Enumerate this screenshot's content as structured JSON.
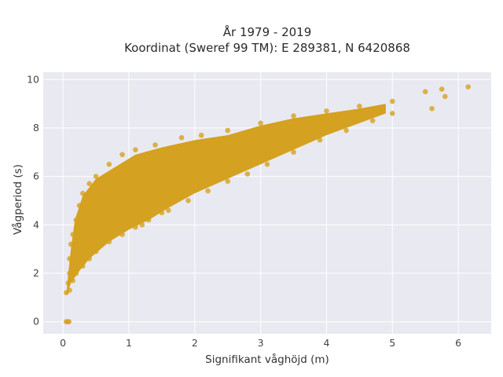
{
  "chart_data": {
    "type": "scatter",
    "title_line1": "År 1979 - 2019",
    "title_line2": "Koordinat (Sweref 99 TM): E 289381, N 6420868",
    "xlabel": "Signifikant våghöjd (m)",
    "ylabel": "Vågperiod (s)",
    "xlim": [
      -0.3,
      6.5
    ],
    "ylim": [
      -0.5,
      10.3
    ],
    "xticks": [
      0,
      1,
      2,
      3,
      4,
      5,
      6
    ],
    "yticks": [
      0,
      2,
      4,
      6,
      8,
      10
    ],
    "grid": true,
    "marker_color": "#D4A120",
    "background_color": "#E9E9F1",
    "series": [
      {
        "points": [
          [
            0.05,
            0.0
          ],
          [
            0.07,
            0.0
          ],
          [
            0.09,
            0.0
          ],
          [
            0.05,
            1.2
          ],
          [
            0.08,
            1.6
          ],
          [
            0.1,
            2.0
          ],
          [
            0.1,
            2.6
          ],
          [
            0.12,
            3.2
          ],
          [
            0.15,
            3.6
          ],
          [
            0.2,
            4.2
          ],
          [
            0.25,
            4.8
          ],
          [
            0.3,
            5.3
          ],
          [
            0.4,
            5.7
          ],
          [
            0.5,
            6.0
          ],
          [
            0.7,
            6.5
          ],
          [
            0.9,
            6.9
          ],
          [
            1.1,
            7.1
          ],
          [
            1.4,
            7.3
          ],
          [
            1.8,
            7.6
          ],
          [
            2.1,
            7.7
          ],
          [
            2.5,
            7.9
          ],
          [
            3.0,
            8.2
          ],
          [
            3.5,
            8.5
          ],
          [
            4.0,
            8.7
          ],
          [
            4.5,
            8.9
          ],
          [
            5.0,
            9.1
          ],
          [
            5.5,
            9.5
          ],
          [
            5.75,
            9.6
          ],
          [
            6.15,
            9.7
          ],
          [
            5.6,
            8.8
          ],
          [
            5.8,
            9.3
          ],
          [
            0.1,
            1.3
          ],
          [
            0.15,
            1.7
          ],
          [
            0.2,
            2.0
          ],
          [
            0.3,
            2.3
          ],
          [
            0.4,
            2.6
          ],
          [
            0.5,
            2.9
          ],
          [
            0.7,
            3.3
          ],
          [
            0.9,
            3.6
          ],
          [
            1.1,
            3.9
          ],
          [
            1.3,
            4.2
          ],
          [
            1.6,
            4.6
          ],
          [
            1.9,
            5.0
          ],
          [
            2.2,
            5.4
          ],
          [
            2.5,
            5.8
          ],
          [
            2.8,
            6.1
          ],
          [
            3.1,
            6.5
          ],
          [
            3.5,
            7.0
          ],
          [
            3.9,
            7.5
          ],
          [
            4.3,
            7.9
          ],
          [
            4.7,
            8.3
          ],
          [
            5.0,
            8.6
          ],
          [
            1.5,
            4.5
          ],
          [
            1.5,
            4.8
          ],
          [
            1.2,
            4.0
          ],
          [
            0.3,
            3.5
          ],
          [
            0.5,
            4.5
          ],
          [
            0.8,
            5.5
          ],
          [
            1.0,
            6.2
          ],
          [
            1.3,
            6.6
          ],
          [
            2.0,
            7.0
          ],
          [
            2.6,
            7.3
          ],
          [
            3.3,
            7.8
          ],
          [
            3.8,
            8.0
          ],
          [
            4.2,
            8.3
          ],
          [
            4.8,
            8.7
          ]
        ]
      }
    ]
  }
}
